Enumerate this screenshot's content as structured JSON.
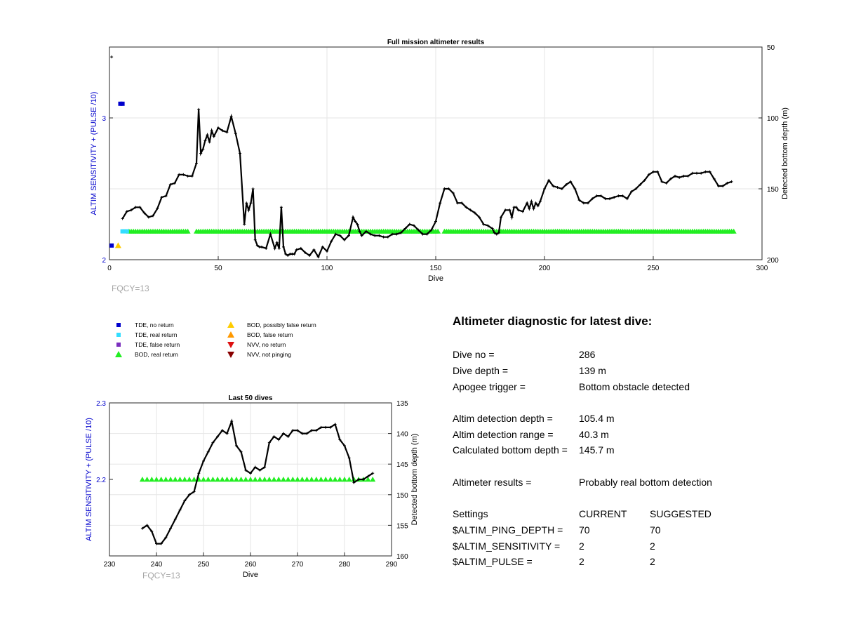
{
  "colors": {
    "tde_no_return": "#0000cc",
    "tde_real_return": "#33ddff",
    "tde_false_return": "#7b2fbe",
    "bod_real_return": "#22ee22",
    "bod_possibly_false": "#ffcc00",
    "bod_false": "#ff9900",
    "nvv_no_return": "#dd1111",
    "nvv_not_pinging": "#880000",
    "axis_left": "#0000cc",
    "depth_line": "#000000",
    "fqcy_text": "#a6a6a6"
  },
  "chart_data": [
    {
      "type": "line",
      "title": "Full mission altimeter results",
      "xlabel": "Dive",
      "ylabel": "ALTIM SENSITIVITY + (PULSE /10)",
      "y2label": "Detected bottom depth (m)",
      "xlim": [
        0,
        300
      ],
      "ylim": [
        2,
        3.5
      ],
      "y2lim": [
        200,
        50
      ],
      "y2_reversed": true,
      "x_ticks": [
        "0",
        "50",
        "100",
        "150",
        "200",
        "250",
        "300"
      ],
      "y_ticks": [
        "2",
        "3"
      ],
      "y2_ticks": [
        "50",
        "100",
        "150",
        "200"
      ],
      "grid": true,
      "annotation": "FQCY=13",
      "depth_series": {
        "x": [
          1,
          6,
          8,
          10,
          12,
          14,
          16,
          18,
          20,
          22,
          24,
          26,
          28,
          30,
          32,
          34,
          36,
          38,
          40,
          41,
          42,
          43,
          44,
          45,
          46,
          47,
          48,
          50,
          52,
          54,
          56,
          58,
          60,
          62,
          63,
          64,
          65,
          66,
          67,
          68,
          69,
          70,
          72,
          74,
          76,
          77,
          78,
          79,
          80,
          81,
          82,
          83,
          84,
          85,
          86,
          88,
          90,
          92,
          94,
          96,
          98,
          100,
          102,
          104,
          106,
          108,
          110,
          112,
          113,
          114,
          115,
          116,
          118,
          120,
          122,
          124,
          126,
          128,
          130,
          132,
          134,
          136,
          138,
          140,
          142,
          144,
          146,
          148,
          150,
          152,
          154,
          156,
          158,
          160,
          162,
          164,
          166,
          168,
          170,
          172,
          174,
          176,
          177,
          178,
          179,
          180,
          182,
          184,
          185,
          186,
          187,
          188,
          190,
          192,
          193,
          194,
          195,
          196,
          197,
          198,
          200,
          202,
          204,
          206,
          208,
          210,
          212,
          214,
          216,
          218,
          220,
          222,
          224,
          226,
          228,
          230,
          232,
          234,
          236,
          238,
          240,
          242,
          244,
          246,
          248,
          250,
          252,
          254,
          256,
          258,
          260,
          262,
          264,
          266,
          268,
          270,
          272,
          274,
          276,
          278,
          280,
          282,
          284,
          286
        ],
        "depth": [
          57,
          171,
          166,
          165,
          163,
          163,
          167,
          170,
          169,
          164,
          156,
          155,
          147,
          146,
          140,
          140,
          141,
          141,
          132,
          94,
          125,
          122,
          116,
          112,
          117,
          109,
          113,
          107,
          109,
          110,
          99,
          111,
          125,
          175,
          160,
          165,
          160,
          150,
          186,
          190,
          191,
          191,
          192,
          182,
          192,
          188,
          192,
          163,
          191,
          196,
          197,
          196,
          196,
          196,
          193,
          192,
          195,
          197,
          193,
          198,
          191,
          194,
          187,
          182,
          183,
          186,
          183,
          170,
          173,
          175,
          180,
          183,
          180,
          182,
          183,
          183,
          184,
          184,
          182,
          182,
          181,
          178,
          175,
          176,
          179,
          182,
          182,
          179,
          173,
          160,
          150,
          150,
          153,
          160,
          160,
          163,
          165,
          167,
          170,
          175,
          176,
          178,
          181,
          182,
          181,
          170,
          165,
          165,
          170,
          163,
          163,
          165,
          166,
          160,
          164,
          159,
          164,
          160,
          162,
          159,
          150,
          144,
          148,
          149,
          150,
          147,
          145,
          150,
          158,
          160,
          160,
          157,
          155,
          155,
          157,
          157,
          156,
          155,
          155,
          157,
          152,
          150,
          147,
          144,
          140,
          138,
          138,
          145,
          146,
          143,
          141,
          142,
          141,
          141,
          139,
          139,
          139,
          138,
          138,
          143,
          148,
          148,
          146,
          145
        ]
      },
      "markers": {
        "tde_no_return": {
          "x": [
            1,
            5,
            6
          ],
          "y": [
            2.1,
            3.1,
            3.1
          ]
        },
        "tde_real_return": {
          "x": [
            6,
            7,
            8
          ],
          "y": [
            2.2,
            2.2,
            2.2
          ]
        },
        "bod_possibly_false": {
          "x": [
            4
          ],
          "y": [
            2.1
          ]
        },
        "bod_real_return": {
          "x_ranges": [
            [
              9,
              36
            ],
            [
              40,
              151
            ],
            [
              154,
              287
            ]
          ],
          "y": 2.2
        }
      }
    },
    {
      "type": "line",
      "title": "Last 50 dives",
      "xlabel": "Dive",
      "ylabel": "ALTIM SENSITIVITY + (PULSE /10)",
      "y2label": "Detected bottom depth (m)",
      "xlim": [
        230,
        290
      ],
      "ylim": [
        2.1,
        2.3
      ],
      "y2lim": [
        160,
        135
      ],
      "y2_reversed": true,
      "x_ticks": [
        "230",
        "240",
        "250",
        "260",
        "270",
        "280",
        "290"
      ],
      "y_ticks": [
        "2.2",
        "2.3"
      ],
      "y2_ticks": [
        "135",
        "140",
        "145",
        "150",
        "155",
        "160"
      ],
      "grid": true,
      "annotation": "FQCY=13",
      "depth_series": {
        "x": [
          237,
          238,
          239,
          240,
          241,
          242,
          243,
          244,
          245,
          246,
          247,
          248,
          249,
          250,
          251,
          252,
          253,
          254,
          255,
          256,
          257,
          258,
          259,
          260,
          261,
          262,
          263,
          264,
          265,
          266,
          267,
          268,
          269,
          270,
          271,
          272,
          273,
          274,
          275,
          276,
          277,
          278,
          279,
          280,
          281,
          282,
          283,
          284,
          285,
          286
        ],
        "depth": [
          155.5,
          155,
          156,
          158,
          158,
          157,
          155.5,
          154,
          152.5,
          151,
          150,
          149.5,
          146.5,
          144.5,
          143,
          141.5,
          140.5,
          139.5,
          140,
          138,
          142,
          143,
          146,
          146.5,
          145.5,
          146,
          145.5,
          141.5,
          140.5,
          141,
          140,
          140.5,
          139.5,
          139.5,
          140,
          140,
          139.5,
          139.5,
          139,
          139,
          139,
          138.5,
          141,
          142,
          144,
          148,
          147.5,
          147.5,
          147,
          146.5
        ]
      },
      "markers": {
        "bod_real_return": {
          "x_range": [
            237,
            286
          ],
          "y": 2.2
        }
      }
    }
  ],
  "legend": {
    "items": [
      {
        "label": "TDE, no return",
        "shape": "square",
        "color": "#0000cc"
      },
      {
        "label": "TDE, real return",
        "shape": "square",
        "color": "#33ddff"
      },
      {
        "label": "TDE, false return",
        "shape": "square",
        "color": "#7b2fbe"
      },
      {
        "label": "BOD, real return",
        "shape": "triangle-up",
        "color": "#22ee22"
      },
      {
        "label": "BOD, possibly false return",
        "shape": "triangle-up",
        "color": "#ffcc00"
      },
      {
        "label": "BOD, false return",
        "shape": "triangle-up",
        "color": "#ff9900"
      },
      {
        "label": "NVV, no return",
        "shape": "triangle-down",
        "color": "#dd1111"
      },
      {
        "label": "NVV, not pinging",
        "shape": "triangle-down",
        "color": "#880000"
      }
    ]
  },
  "diagnostic": {
    "title": "Altimeter diagnostic for latest dive:",
    "dive_no_label": "Dive no =",
    "dive_no_value": "286",
    "dive_depth_label": "Dive depth =",
    "dive_depth_value": "139 m",
    "apogee_label": "Apogee trigger =",
    "apogee_value": "Bottom obstacle detected",
    "det_depth_label": "Altim detection depth =",
    "det_depth_value": "105.4 m",
    "det_range_label": "Altim detection range =",
    "det_range_value": "40.3 m",
    "calc_depth_label": "Calculated bottom depth =",
    "calc_depth_value": "145.7 m",
    "results_label": "Altimeter results =",
    "results_value": "Probably real bottom detection",
    "settings_header": "Settings",
    "current_header": "CURRENT",
    "suggested_header": "SUGGESTED",
    "settings": [
      {
        "name": "$ALTIM_PING_DEPTH =",
        "current": "70",
        "suggested": "70"
      },
      {
        "name": "$ALTIM_SENSITIVITY =",
        "current": "2",
        "suggested": "2"
      },
      {
        "name": "$ALTIM_PULSE =",
        "current": "2",
        "suggested": "2"
      }
    ]
  }
}
